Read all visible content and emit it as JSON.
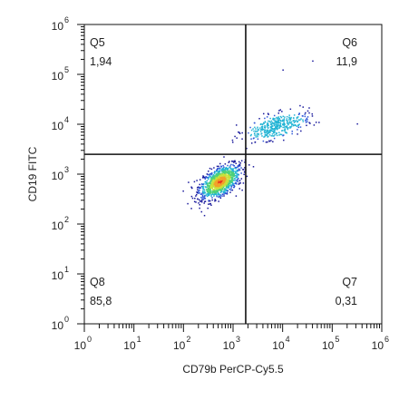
{
  "chart_data": {
    "type": "scatter",
    "title": "",
    "xlabel": "CD79b PerCP-Cy5.5",
    "ylabel": "CD19 FITC",
    "x_scale": "log",
    "y_scale": "log",
    "xlim": [
      1,
      1000000
    ],
    "ylim": [
      1,
      1000000
    ],
    "x_ticks": [
      {
        "base": "10",
        "exp": "0",
        "value": 1
      },
      {
        "base": "10",
        "exp": "1",
        "value": 10
      },
      {
        "base": "10",
        "exp": "2",
        "value": 100
      },
      {
        "base": "10",
        "exp": "3",
        "value": 1000
      },
      {
        "base": "10",
        "exp": "4",
        "value": 10000
      },
      {
        "base": "10",
        "exp": "5",
        "value": 100000
      },
      {
        "base": "10",
        "exp": "6",
        "value": 1000000
      }
    ],
    "y_ticks": [
      {
        "base": "10",
        "exp": "0",
        "value": 1
      },
      {
        "base": "10",
        "exp": "1",
        "value": 10
      },
      {
        "base": "10",
        "exp": "2",
        "value": 100
      },
      {
        "base": "10",
        "exp": "3",
        "value": 1000
      },
      {
        "base": "10",
        "exp": "4",
        "value": 10000
      },
      {
        "base": "10",
        "exp": "5",
        "value": 100000
      },
      {
        "base": "10",
        "exp": "6",
        "value": 1000000
      }
    ],
    "gate": {
      "x": 1800,
      "y": 2500
    },
    "quadrants": [
      {
        "name": "Q5",
        "percent": "1,94",
        "position": "top-left"
      },
      {
        "name": "Q6",
        "percent": "11,9",
        "position": "top-right"
      },
      {
        "name": "Q7",
        "percent": "0,31",
        "position": "bottom-right"
      },
      {
        "name": "Q8",
        "percent": "85,8",
        "position": "bottom-left"
      }
    ],
    "populations": [
      {
        "center_x": 550,
        "center_y": 700,
        "spread_x_decades": 0.2,
        "spread_y_decades": 0.16,
        "count": 1100,
        "color_scale": "density"
      },
      {
        "center_x": 7500,
        "center_y": 9000,
        "spread_x_decades": 0.3,
        "spread_y_decades": 0.13,
        "count": 380,
        "color_scale": "density"
      }
    ],
    "density_colors": [
      "#1a1a9c",
      "#2f58d8",
      "#23b4d4",
      "#4cd07a",
      "#c8e23a",
      "#f2a12a",
      "#e8361e"
    ],
    "grid": false,
    "legend": "none"
  }
}
